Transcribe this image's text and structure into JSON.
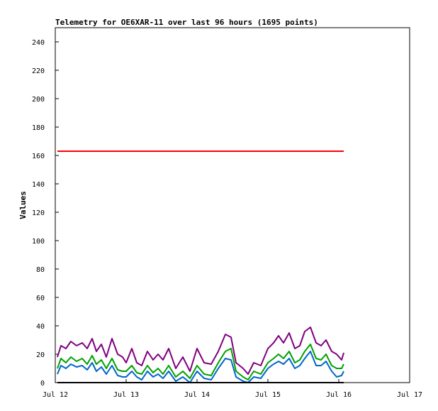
{
  "chart_data": {
    "type": "line",
    "title": "Telemetry for OE6XAR-11 over last 96 hours (1695 points)",
    "xlabel": "",
    "ylabel": "Values",
    "xlim": [
      12,
      17
    ],
    "ylim": [
      0,
      250
    ],
    "x_ticks": [
      {
        "value": 12,
        "label": "Jul 12"
      },
      {
        "value": 13,
        "label": "Jul 13"
      },
      {
        "value": 14,
        "label": "Jul 14"
      },
      {
        "value": 15,
        "label": "Jul 15"
      },
      {
        "value": 16,
        "label": "Jul 16"
      },
      {
        "value": 17,
        "label": "Jul 17"
      }
    ],
    "y_ticks": [
      0,
      20,
      40,
      60,
      80,
      100,
      120,
      140,
      160,
      180,
      200,
      220,
      240
    ],
    "grid": false,
    "legend": "none",
    "series": [
      {
        "color": "#ff0000",
        "x": [
          12.03,
          12.5,
          13.0,
          13.5,
          14.0,
          14.5,
          15.0,
          15.5,
          16.07
        ],
        "values": [
          163,
          163,
          163,
          163,
          163,
          163,
          163,
          163,
          163
        ]
      },
      {
        "color": "#800080",
        "x": [
          12.03,
          12.08,
          12.15,
          12.22,
          12.3,
          12.38,
          12.45,
          12.52,
          12.58,
          12.65,
          12.72,
          12.8,
          12.88,
          12.95,
          13.0,
          13.08,
          13.15,
          13.22,
          13.3,
          13.38,
          13.45,
          13.52,
          13.6,
          13.7,
          13.8,
          13.9,
          14.0,
          14.1,
          14.2,
          14.3,
          14.4,
          14.48,
          14.55,
          14.65,
          14.72,
          14.8,
          14.9,
          15.0,
          15.08,
          15.15,
          15.22,
          15.3,
          15.38,
          15.45,
          15.52,
          15.6,
          15.68,
          15.75,
          15.82,
          15.9,
          15.97,
          16.04,
          16.07
        ],
        "values": [
          18,
          26,
          24,
          29,
          26,
          28,
          24,
          31,
          22,
          27,
          18,
          31,
          20,
          18,
          14,
          24,
          14,
          12,
          22,
          16,
          20,
          16,
          24,
          10,
          18,
          8,
          24,
          14,
          13,
          22,
          34,
          32,
          14,
          10,
          6,
          14,
          12,
          24,
          28,
          33,
          28,
          35,
          24,
          26,
          36,
          39,
          28,
          26,
          30,
          22,
          20,
          16,
          21
        ]
      },
      {
        "color": "#00a000",
        "x": [
          12.03,
          12.08,
          12.15,
          12.22,
          12.3,
          12.38,
          12.45,
          12.52,
          12.58,
          12.65,
          12.72,
          12.8,
          12.88,
          12.95,
          13.0,
          13.08,
          13.15,
          13.22,
          13.3,
          13.38,
          13.45,
          13.52,
          13.6,
          13.7,
          13.8,
          13.9,
          14.0,
          14.1,
          14.2,
          14.3,
          14.4,
          14.48,
          14.55,
          14.65,
          14.72,
          14.8,
          14.9,
          15.0,
          15.08,
          15.15,
          15.22,
          15.3,
          15.38,
          15.45,
          15.52,
          15.6,
          15.68,
          15.75,
          15.82,
          15.9,
          15.97,
          16.04,
          16.07
        ],
        "values": [
          10,
          17,
          14,
          18,
          15,
          17,
          13,
          19,
          13,
          16,
          10,
          17,
          9,
          8,
          8,
          12,
          7,
          6,
          12,
          7,
          10,
          6,
          12,
          4,
          8,
          3,
          12,
          6,
          5,
          14,
          22,
          24,
          8,
          4,
          2,
          8,
          6,
          14,
          17,
          20,
          17,
          22,
          14,
          16,
          22,
          27,
          17,
          16,
          20,
          12,
          10,
          10,
          13
        ]
      },
      {
        "color": "#0066cc",
        "x": [
          12.03,
          12.08,
          12.15,
          12.22,
          12.3,
          12.38,
          12.45,
          12.52,
          12.58,
          12.65,
          12.72,
          12.8,
          12.88,
          12.95,
          13.0,
          13.08,
          13.15,
          13.22,
          13.3,
          13.38,
          13.45,
          13.52,
          13.6,
          13.7,
          13.8,
          13.9,
          14.0,
          14.1,
          14.2,
          14.3,
          14.4,
          14.48,
          14.55,
          14.65,
          14.72,
          14.8,
          14.9,
          15.0,
          15.08,
          15.15,
          15.22,
          15.3,
          15.38,
          15.45,
          15.52,
          15.6,
          15.68,
          15.75,
          15.82,
          15.9,
          15.97,
          16.04,
          16.07
        ],
        "values": [
          6,
          12,
          10,
          13,
          11,
          12,
          9,
          14,
          8,
          11,
          6,
          12,
          5,
          4,
          4,
          8,
          4,
          2,
          8,
          4,
          6,
          3,
          8,
          1,
          4,
          0,
          8,
          3,
          2,
          10,
          17,
          16,
          4,
          1,
          0,
          4,
          3,
          10,
          13,
          15,
          13,
          17,
          10,
          12,
          17,
          22,
          12,
          12,
          15,
          8,
          4,
          5,
          8
        ]
      },
      {
        "color": "#000000",
        "x": [
          12.03,
          16.07
        ],
        "values": [
          0,
          0
        ]
      }
    ]
  }
}
